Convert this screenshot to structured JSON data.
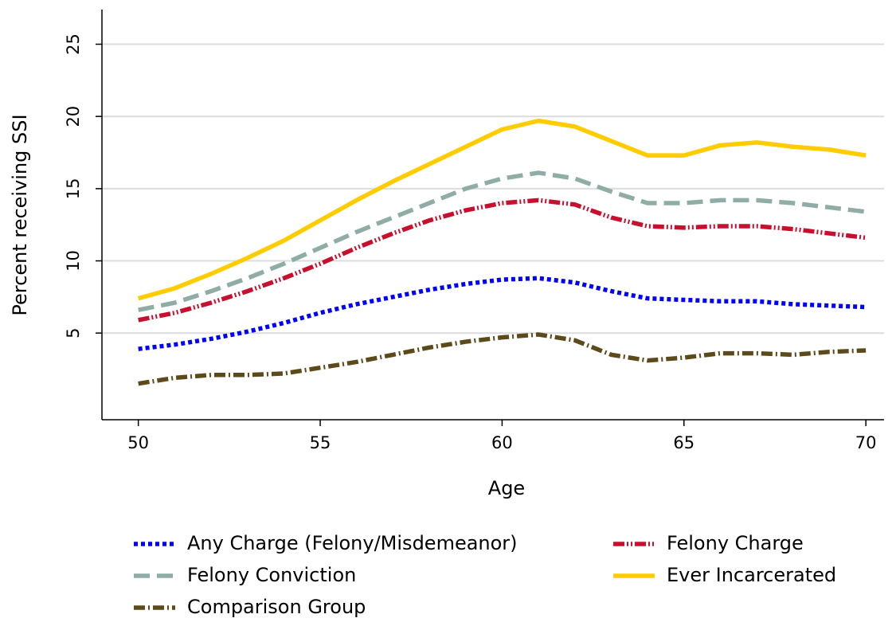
{
  "chart_data": {
    "type": "line",
    "x_label": "Age",
    "y_label": "Percent receiving SSI",
    "x": [
      50,
      51,
      52,
      53,
      54,
      55,
      56,
      57,
      58,
      59,
      60,
      61,
      62,
      63,
      64,
      65,
      66,
      67,
      68,
      69,
      70
    ],
    "series": [
      {
        "name": "Any Charge (Felony/Misdemeanor)",
        "color": "#0000ff",
        "dash": "dot",
        "values": [
          3.9,
          4.2,
          4.6,
          5.1,
          5.7,
          6.4,
          7.0,
          7.5,
          8.0,
          8.4,
          8.7,
          8.8,
          8.5,
          7.9,
          7.4,
          7.3,
          7.2,
          7.2,
          7.0,
          6.9,
          6.8
        ]
      },
      {
        "name": "Felony Charge",
        "color": "#c8102e",
        "dash": "dashdotdot",
        "values": [
          5.9,
          6.4,
          7.1,
          7.9,
          8.8,
          9.8,
          10.9,
          11.9,
          12.8,
          13.5,
          14.0,
          14.2,
          13.9,
          13.0,
          12.4,
          12.3,
          12.4,
          12.4,
          12.2,
          11.9,
          11.6
        ]
      },
      {
        "name": "Felony Conviction",
        "color": "#8fada6",
        "dash": "dash",
        "values": [
          6.6,
          7.1,
          7.9,
          8.8,
          9.8,
          10.9,
          12.0,
          13.0,
          14.0,
          15.0,
          15.7,
          16.1,
          15.7,
          14.8,
          14.0,
          14.0,
          14.2,
          14.2,
          14.0,
          13.7,
          13.4
        ]
      },
      {
        "name": "Ever Incarcerated",
        "color": "#ffcc00",
        "dash": "solid",
        "values": [
          7.4,
          8.1,
          9.1,
          10.2,
          11.4,
          12.8,
          14.2,
          15.5,
          16.7,
          17.9,
          19.1,
          19.7,
          19.3,
          18.3,
          17.3,
          17.3,
          18.0,
          18.2,
          17.9,
          17.7,
          17.3
        ]
      },
      {
        "name": "Comparison Group",
        "color": "#5c4a1b",
        "dash": "dashdot",
        "values": [
          1.5,
          1.9,
          2.1,
          2.1,
          2.2,
          2.6,
          3.0,
          3.5,
          4.0,
          4.4,
          4.7,
          4.9,
          4.5,
          3.5,
          3.1,
          3.3,
          3.6,
          3.6,
          3.5,
          3.7,
          3.8
        ]
      }
    ],
    "xlim": [
      49,
      70.5
    ],
    "xticks": [
      50,
      55,
      60,
      65,
      70
    ],
    "ylim": [
      -1,
      27.4
    ],
    "yticks": [
      5,
      10,
      15,
      20,
      25
    ],
    "grid": true,
    "legend": "bottom"
  }
}
